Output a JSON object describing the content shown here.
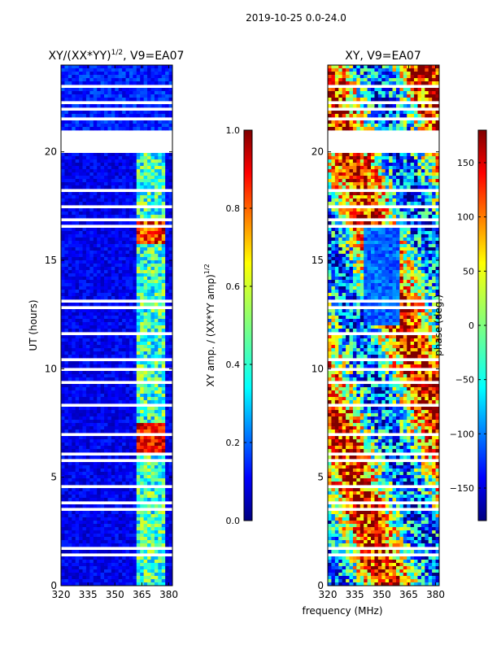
{
  "suptitle": "2019-10-25 0.0-24.0",
  "xlabel_shared": "frequency (MHz)",
  "chart_data": [
    {
      "type": "heatmap",
      "title_main": "XY/(XX*YY)",
      "title_sup": "1/2",
      "title_rest": ", V9=EA07",
      "ylabel": "UT (hours)",
      "xlim": [
        320,
        382
      ],
      "ylim": [
        0,
        24
      ],
      "xticks": [
        320,
        335,
        350,
        365,
        380
      ],
      "yticks": [
        0,
        5,
        10,
        15,
        20
      ],
      "colorbar": {
        "label_main": "XY amp. / (XX*YY amp)",
        "label_sup": "1/2",
        "range": [
          0.0,
          1.0
        ],
        "ticks": [
          "0.0",
          "0.2",
          "0.4",
          "0.6",
          "0.8",
          "1.0"
        ],
        "colormap": "jet"
      }
    },
    {
      "type": "heatmap",
      "title_main": "XY, V9=EA07",
      "ylabel": "",
      "xlim": [
        320,
        382
      ],
      "ylim": [
        0,
        24
      ],
      "xticks": [
        320,
        335,
        350,
        365,
        380
      ],
      "yticks": [
        0,
        5,
        10,
        15,
        20
      ],
      "colorbar": {
        "label_main": "phase (deg.)",
        "range": [
          -180,
          180
        ],
        "ticks": [
          "-150",
          "-100",
          "-50",
          "0",
          "50",
          "100",
          "150"
        ],
        "colormap": "jet"
      }
    }
  ],
  "colors": {
    "jet_0": "#00007f",
    "jet_1": "#0000ff",
    "jet_2": "#007fff",
    "jet_3": "#00ffff",
    "jet_4": "#7fff7f",
    "jet_5": "#ffff00",
    "jet_6": "#ff7f00",
    "jet_7": "#ff0000",
    "jet_8": "#7f0000"
  }
}
